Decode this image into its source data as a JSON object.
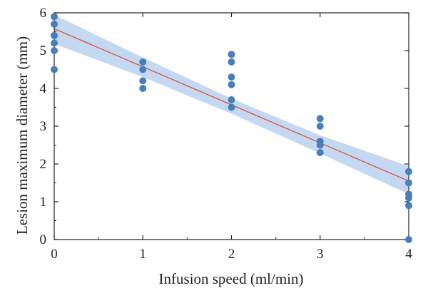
{
  "chart_data": {
    "type": "scatter",
    "xlabel": "Infusion speed (ml/min)",
    "ylabel": "Lesion maximum diameter (mm)",
    "xlim": [
      0,
      4
    ],
    "ylim": [
      0,
      6
    ],
    "x_ticks": [
      "0",
      "1",
      "2",
      "3",
      "4"
    ],
    "y_ticks": [
      "0",
      "1",
      "2",
      "3",
      "4",
      "5",
      "6"
    ],
    "grid": false,
    "series": [
      {
        "kind": "scatter",
        "points": [
          [
            0,
            5.9
          ],
          [
            0,
            5.7
          ],
          [
            0,
            5.4
          ],
          [
            0,
            5.2
          ],
          [
            0,
            5.0
          ],
          [
            0,
            4.5
          ],
          [
            1,
            4.7
          ],
          [
            1,
            4.5
          ],
          [
            1,
            4.2
          ],
          [
            1,
            4.0
          ],
          [
            2,
            4.9
          ],
          [
            2,
            4.7
          ],
          [
            2,
            4.3
          ],
          [
            2,
            4.1
          ],
          [
            2,
            3.7
          ],
          [
            2,
            3.5
          ],
          [
            3,
            3.2
          ],
          [
            3,
            3.0
          ],
          [
            3,
            2.6
          ],
          [
            3,
            2.5
          ],
          [
            3,
            2.3
          ],
          [
            4,
            1.8
          ],
          [
            4,
            1.5
          ],
          [
            4,
            1.2
          ],
          [
            4,
            1.1
          ],
          [
            4,
            0.9
          ],
          [
            4,
            0.0
          ]
        ]
      },
      {
        "kind": "regression-line",
        "points": [
          [
            0,
            5.58
          ],
          [
            4,
            1.55
          ]
        ]
      },
      {
        "kind": "confidence-band",
        "x": [
          0,
          1,
          2,
          3,
          4
        ],
        "upper": [
          5.95,
          4.82,
          3.73,
          2.76,
          1.94
        ],
        "lower": [
          5.18,
          4.3,
          3.33,
          2.28,
          1.2
        ]
      }
    ],
    "colors": {
      "points": "#4a7ebb",
      "line": "#d9533b",
      "band": "#c5d8f2",
      "axis": "#222222"
    }
  }
}
